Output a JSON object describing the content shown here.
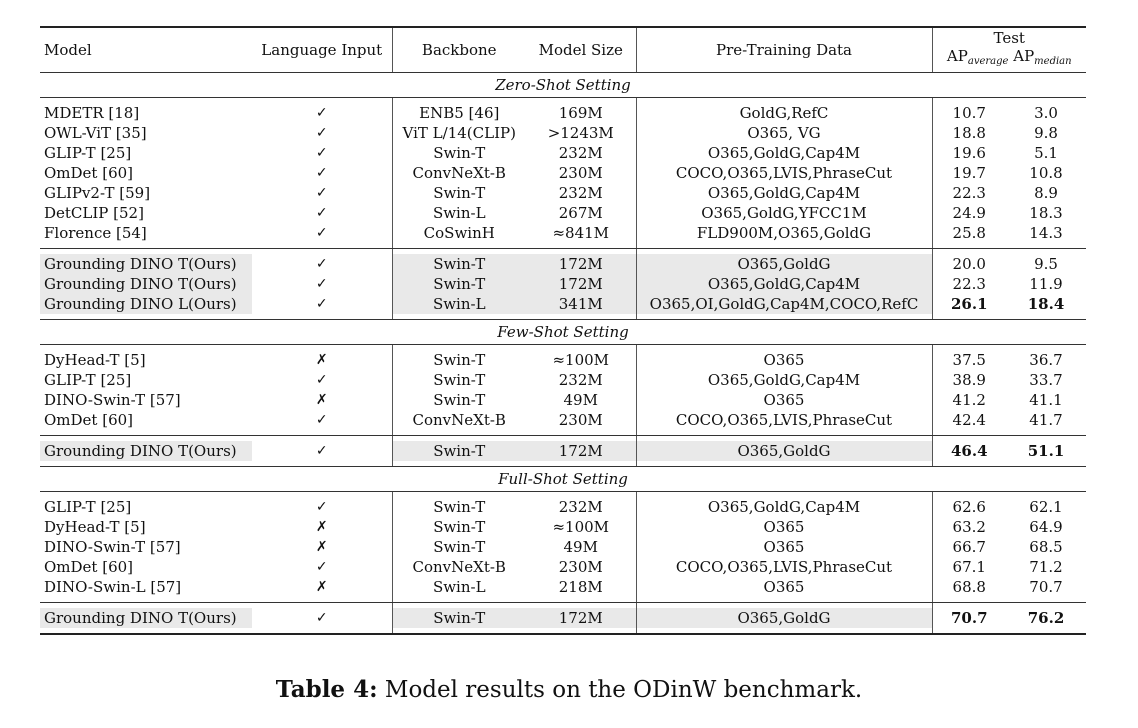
{
  "headers": {
    "model": "Model",
    "language_input": "Language Input",
    "backbone": "Backbone",
    "model_size": "Model Size",
    "pretraining_data": "Pre-Training Data",
    "test": "Test",
    "ap_average_main": "AP",
    "ap_average_sub": "average",
    "ap_median_main": "AP",
    "ap_median_sub": "median"
  },
  "sections": [
    {
      "title": "Zero-Shot Setting",
      "rows": [
        {
          "model": "MDETR [18]",
          "lang": "✓",
          "backbone": "ENB5 [46]",
          "size": "169M",
          "data": "GoldG,RefC",
          "ap_avg": "10.7",
          "ap_med": "3.0"
        },
        {
          "model": "OWL-ViT [35]",
          "lang": "✓",
          "backbone": "ViT L/14(CLIP)",
          "size": ">1243M",
          "data": "O365, VG",
          "ap_avg": "18.8",
          "ap_med": "9.8"
        },
        {
          "model": "GLIP-T [25]",
          "lang": "✓",
          "backbone": "Swin-T",
          "size": "232M",
          "data": "O365,GoldG,Cap4M",
          "ap_avg": "19.6",
          "ap_med": "5.1"
        },
        {
          "model": "OmDet [60]",
          "lang": "✓",
          "backbone": "ConvNeXt-B",
          "size": "230M",
          "data": "COCO,O365,LVIS,PhraseCut",
          "ap_avg": "19.7",
          "ap_med": "10.8"
        },
        {
          "model": "GLIPv2-T [59]",
          "lang": "✓",
          "backbone": "Swin-T",
          "size": "232M",
          "data": "O365,GoldG,Cap4M",
          "ap_avg": "22.3",
          "ap_med": "8.9"
        },
        {
          "model": "DetCLIP [52]",
          "lang": "✓",
          "backbone": "Swin-L",
          "size": "267M",
          "data": "O365,GoldG,YFCC1M",
          "ap_avg": "24.9",
          "ap_med": "18.3"
        },
        {
          "model": "Florence [54]",
          "lang": "✓",
          "backbone": "CoSwinH",
          "size": "≈841M",
          "data": "FLD900M,O365,GoldG",
          "ap_avg": "25.8",
          "ap_med": "14.3"
        }
      ],
      "ours": [
        {
          "model": "Grounding DINO T(Ours)",
          "lang": "✓",
          "backbone": "Swin-T",
          "size": "172M",
          "data": "O365,GoldG",
          "ap_avg": "20.0",
          "ap_med": "9.5",
          "bold": false
        },
        {
          "model": "Grounding DINO T(Ours)",
          "lang": "✓",
          "backbone": "Swin-T",
          "size": "172M",
          "data": "O365,GoldG,Cap4M",
          "ap_avg": "22.3",
          "ap_med": "11.9",
          "bold": false
        },
        {
          "model": "Grounding DINO L(Ours)",
          "lang": "✓",
          "backbone": "Swin-L",
          "size": "341M",
          "data": "O365,OI,GoldG,Cap4M,COCO,RefC",
          "ap_avg": "26.1",
          "ap_med": "18.4",
          "bold": true
        }
      ]
    },
    {
      "title": "Few-Shot Setting",
      "rows": [
        {
          "model": "DyHead-T [5]",
          "lang": "✗",
          "backbone": "Swin-T",
          "size": "≈100M",
          "data": "O365",
          "ap_avg": "37.5",
          "ap_med": "36.7"
        },
        {
          "model": "GLIP-T [25]",
          "lang": "✓",
          "backbone": "Swin-T",
          "size": "232M",
          "data": "O365,GoldG,Cap4M",
          "ap_avg": "38.9",
          "ap_med": "33.7"
        },
        {
          "model": "DINO-Swin-T [57]",
          "lang": "✗",
          "backbone": "Swin-T",
          "size": "49M",
          "data": "O365",
          "ap_avg": "41.2",
          "ap_med": "41.1"
        },
        {
          "model": "OmDet [60]",
          "lang": "✓",
          "backbone": "ConvNeXt-B",
          "size": "230M",
          "data": "COCO,O365,LVIS,PhraseCut",
          "ap_avg": "42.4",
          "ap_med": "41.7"
        }
      ],
      "ours": [
        {
          "model": "Grounding DINO T(Ours)",
          "lang": "✓",
          "backbone": "Swin-T",
          "size": "172M",
          "data": "O365,GoldG",
          "ap_avg": "46.4",
          "ap_med": "51.1",
          "bold": true
        }
      ]
    },
    {
      "title": "Full-Shot Setting",
      "rows": [
        {
          "model": "GLIP-T [25]",
          "lang": "✓",
          "backbone": "Swin-T",
          "size": "232M",
          "data": "O365,GoldG,Cap4M",
          "ap_avg": "62.6",
          "ap_med": "62.1"
        },
        {
          "model": "DyHead-T [5]",
          "lang": "✗",
          "backbone": "Swin-T",
          "size": "≈100M",
          "data": "O365",
          "ap_avg": "63.2",
          "ap_med": "64.9"
        },
        {
          "model": "DINO-Swin-T [57]",
          "lang": "✗",
          "backbone": "Swin-T",
          "size": "49M",
          "data": "O365",
          "ap_avg": "66.7",
          "ap_med": "68.5"
        },
        {
          "model": "OmDet [60]",
          "lang": "✓",
          "backbone": "ConvNeXt-B",
          "size": "230M",
          "data": "COCO,O365,LVIS,PhraseCut",
          "ap_avg": "67.1",
          "ap_med": "71.2"
        },
        {
          "model": "DINO-Swin-L [57]",
          "lang": "✗",
          "backbone": "Swin-L",
          "size": "218M",
          "data": "O365",
          "ap_avg": "68.8",
          "ap_med": "70.7"
        }
      ],
      "ours": [
        {
          "model": "Grounding DINO T(Ours)",
          "lang": "✓",
          "backbone": "Swin-T",
          "size": "172M",
          "data": "O365,GoldG",
          "ap_avg": "70.7",
          "ap_med": "76.2",
          "bold": true
        }
      ]
    }
  ],
  "caption": {
    "label": "Table 4:",
    "text": " Model results on the ODinW benchmark."
  }
}
